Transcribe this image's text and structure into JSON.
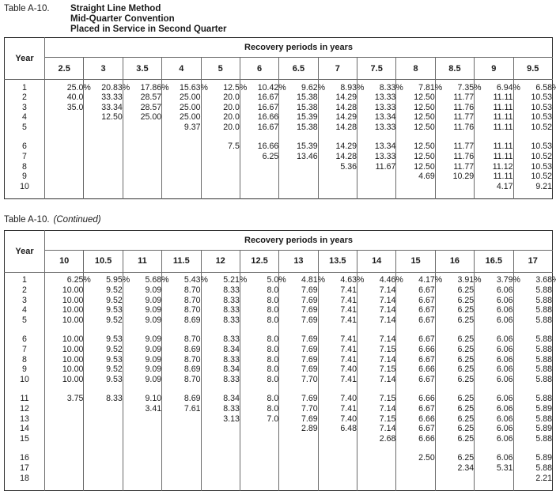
{
  "document": {
    "style": {
      "text_color": "#1a1a1a",
      "border_color": "#6a6a6a",
      "outer_border_color": "#2e2e2e",
      "background": "#ffffff"
    },
    "table1": {
      "label": "Table A-10.",
      "title_lines": [
        "Straight Line Method",
        "Mid-Quarter Convention",
        "Placed in Service in Second Quarter"
      ],
      "year_header": "Year",
      "periods_header": "Recovery periods in years",
      "periods": [
        "2.5",
        "3",
        "3.5",
        "4",
        "5",
        "6",
        "6.5",
        "7",
        "7.5",
        "8",
        "8.5",
        "9",
        "9.5"
      ],
      "row_groups": [
        [
          {
            "year": "1",
            "values": [
              "25.0%",
              "20.83%",
              "17.86%",
              "15.63%",
              "12.5%",
              "10.42%",
              "9.62%",
              "8.93%",
              "8.33%",
              "7.81%",
              "7.35%",
              "6.94%",
              "6.58%"
            ]
          },
          {
            "year": "2",
            "values": [
              "40.0",
              "33.33",
              "28.57",
              "25.00",
              "20.0",
              "16.67",
              "15.38",
              "14.29",
              "13.33",
              "12.50",
              "11.77",
              "11.11",
              "10.53"
            ]
          },
          {
            "year": "3",
            "values": [
              "35.0",
              "33.34",
              "28.57",
              "25.00",
              "20.0",
              "16.67",
              "15.38",
              "14.28",
              "13.33",
              "12.50",
              "11.76",
              "11.11",
              "10.53"
            ]
          },
          {
            "year": "4",
            "values": [
              "",
              "12.50",
              "25.00",
              "25.00",
              "20.0",
              "16.66",
              "15.39",
              "14.29",
              "13.34",
              "12.50",
              "11.77",
              "11.11",
              "10.53"
            ]
          },
          {
            "year": "5",
            "values": [
              "",
              "",
              "",
              "9.37",
              "20.0",
              "16.67",
              "15.38",
              "14.28",
              "13.33",
              "12.50",
              "11.76",
              "11.11",
              "10.52"
            ]
          }
        ],
        [
          {
            "year": "6",
            "values": [
              "",
              "",
              "",
              "",
              "7.5",
              "16.66",
              "15.39",
              "14.29",
              "13.34",
              "12.50",
              "11.77",
              "11.11",
              "10.53"
            ]
          },
          {
            "year": "7",
            "values": [
              "",
              "",
              "",
              "",
              "",
              "6.25",
              "13.46",
              "14.28",
              "13.33",
              "12.50",
              "11.76",
              "11.11",
              "10.52"
            ]
          },
          {
            "year": "8",
            "values": [
              "",
              "",
              "",
              "",
              "",
              "",
              "",
              "5.36",
              "11.67",
              "12.50",
              "11.77",
              "11.12",
              "10.53"
            ]
          },
          {
            "year": "9",
            "values": [
              "",
              "",
              "",
              "",
              "",
              "",
              "",
              "",
              "",
              "4.69",
              "10.29",
              "11.11",
              "10.52"
            ]
          },
          {
            "year": "10",
            "values": [
              "",
              "",
              "",
              "",
              "",
              "",
              "",
              "",
              "",
              "",
              "",
              "4.17",
              "9.21"
            ]
          }
        ]
      ]
    },
    "table2": {
      "label": "Table A-10.",
      "continued": "(Continued)",
      "year_header": "Year",
      "periods_header": "Recovery periods in years",
      "periods": [
        "10",
        "10.5",
        "11",
        "11.5",
        "12",
        "12.5",
        "13",
        "13.5",
        "14",
        "15",
        "16",
        "16.5",
        "17"
      ],
      "row_groups": [
        [
          {
            "year": "1",
            "values": [
              "6.25%",
              "5.95%",
              "5.68%",
              "5.43%",
              "5.21%",
              "5.0%",
              "4.81%",
              "4.63%",
              "4.46%",
              "4.17%",
              "3.91%",
              "3.79%",
              "3.68%"
            ]
          },
          {
            "year": "2",
            "values": [
              "10.00",
              "9.52",
              "9.09",
              "8.70",
              "8.33",
              "8.0",
              "7.69",
              "7.41",
              "7.14",
              "6.67",
              "6.25",
              "6.06",
              "5.88"
            ]
          },
          {
            "year": "3",
            "values": [
              "10.00",
              "9.52",
              "9.09",
              "8.70",
              "8.33",
              "8.0",
              "7.69",
              "7.41",
              "7.14",
              "6.67",
              "6.25",
              "6.06",
              "5.88"
            ]
          },
          {
            "year": "4",
            "values": [
              "10.00",
              "9.53",
              "9.09",
              "8.70",
              "8.33",
              "8.0",
              "7.69",
              "7.41",
              "7.14",
              "6.67",
              "6.25",
              "6.06",
              "5.88"
            ]
          },
          {
            "year": "5",
            "values": [
              "10.00",
              "9.52",
              "9.09",
              "8.69",
              "8.33",
              "8.0",
              "7.69",
              "7.41",
              "7.14",
              "6.67",
              "6.25",
              "6.06",
              "5.88"
            ]
          }
        ],
        [
          {
            "year": "6",
            "values": [
              "10.00",
              "9.53",
              "9.09",
              "8.70",
              "8.33",
              "8.0",
              "7.69",
              "7.41",
              "7.14",
              "6.67",
              "6.25",
              "6.06",
              "5.88"
            ]
          },
          {
            "year": "7",
            "values": [
              "10.00",
              "9.52",
              "9.09",
              "8.69",
              "8.34",
              "8.0",
              "7.69",
              "7.41",
              "7.15",
              "6.66",
              "6.25",
              "6.06",
              "5.88"
            ]
          },
          {
            "year": "8",
            "values": [
              "10.00",
              "9.53",
              "9.09",
              "8.70",
              "8.33",
              "8.0",
              "7.69",
              "7.41",
              "7.14",
              "6.67",
              "6.25",
              "6.06",
              "5.88"
            ]
          },
          {
            "year": "9",
            "values": [
              "10.00",
              "9.52",
              "9.09",
              "8.69",
              "8.34",
              "8.0",
              "7.69",
              "7.40",
              "7.15",
              "6.66",
              "6.25",
              "6.06",
              "5.88"
            ]
          },
          {
            "year": "10",
            "values": [
              "10.00",
              "9.53",
              "9.09",
              "8.70",
              "8.33",
              "8.0",
              "7.70",
              "7.41",
              "7.14",
              "6.67",
              "6.25",
              "6.06",
              "5.88"
            ]
          }
        ],
        [
          {
            "year": "11",
            "values": [
              "3.75",
              "8.33",
              "9.10",
              "8.69",
              "8.34",
              "8.0",
              "7.69",
              "7.40",
              "7.15",
              "6.66",
              "6.25",
              "6.06",
              "5.88"
            ]
          },
          {
            "year": "12",
            "values": [
              "",
              "",
              "3.41",
              "7.61",
              "8.33",
              "8.0",
              "7.70",
              "7.41",
              "7.14",
              "6.67",
              "6.25",
              "6.06",
              "5.89"
            ]
          },
          {
            "year": "13",
            "values": [
              "",
              "",
              "",
              "",
              "3.13",
              "7.0",
              "7.69",
              "7.40",
              "7.15",
              "6.66",
              "6.25",
              "6.06",
              "5.88"
            ]
          },
          {
            "year": "14",
            "values": [
              "",
              "",
              "",
              "",
              "",
              "",
              "2.89",
              "6.48",
              "7.14",
              "6.67",
              "6.25",
              "6.06",
              "5.89"
            ]
          },
          {
            "year": "15",
            "values": [
              "",
              "",
              "",
              "",
              "",
              "",
              "",
              "",
              "2.68",
              "6.66",
              "6.25",
              "6.06",
              "5.88"
            ]
          }
        ],
        [
          {
            "year": "16",
            "values": [
              "",
              "",
              "",
              "",
              "",
              "",
              "",
              "",
              "",
              "2.50",
              "6.25",
              "6.06",
              "5.89"
            ]
          },
          {
            "year": "17",
            "values": [
              "",
              "",
              "",
              "",
              "",
              "",
              "",
              "",
              "",
              "",
              "2.34",
              "5.31",
              "5.88"
            ]
          },
          {
            "year": "18",
            "values": [
              "",
              "",
              "",
              "",
              "",
              "",
              "",
              "",
              "",
              "",
              "",
              "",
              "2.21"
            ]
          }
        ]
      ]
    }
  }
}
